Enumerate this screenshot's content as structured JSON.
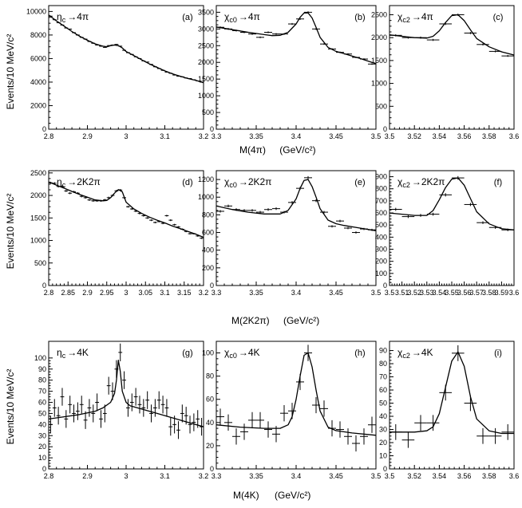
{
  "figure": {
    "ylabel_rows": [
      "Events/10 MeV/c²",
      "Events/10 MeV/c²",
      "Events/10 MeV/c²"
    ],
    "xlabel_rows": [
      {
        "quantity": "M(4π)",
        "unit": "(GeV/c²)"
      },
      {
        "quantity": "M(2K2π)",
        "unit": "(GeV/c²)"
      },
      {
        "quantity": "M(4K)",
        "unit": "(GeV/c²)"
      }
    ]
  },
  "chart_data": [
    {
      "id": "a",
      "type": "scatter",
      "label": "(a)",
      "title": {
        "particle": "η",
        "sub": "c",
        "decay": "4π"
      },
      "xlim": [
        2.8,
        3.2
      ],
      "ylim": [
        0,
        10500
      ],
      "xticks": [
        2.8,
        2.9,
        3,
        3.1,
        3.2
      ],
      "yticks": [
        0,
        2000,
        4000,
        6000,
        8000,
        10000
      ],
      "data": {
        "x": [
          2.805,
          2.815,
          2.825,
          2.835,
          2.845,
          2.855,
          2.865,
          2.875,
          2.885,
          2.895,
          2.905,
          2.915,
          2.925,
          2.935,
          2.945,
          2.955,
          2.965,
          2.975,
          2.985,
          2.995,
          3.005,
          3.015,
          3.025,
          3.035,
          3.045,
          3.055,
          3.065,
          3.075,
          3.085,
          3.095,
          3.105,
          3.115,
          3.125,
          3.135,
          3.145,
          3.155,
          3.165,
          3.175,
          3.185,
          3.195
        ],
        "y": [
          9600,
          9300,
          9050,
          8850,
          8600,
          8500,
          8200,
          8000,
          7800,
          7650,
          7450,
          7300,
          7150,
          7050,
          6950,
          7100,
          7150,
          7200,
          7050,
          6700,
          6500,
          6350,
          6150,
          6000,
          5800,
          5700,
          5500,
          5300,
          5150,
          5000,
          4850,
          4750,
          4600,
          4500,
          4450,
          4350,
          4300,
          4200,
          4100,
          4000
        ],
        "xerr": 0.005
      },
      "fit": {
        "x": [
          2.8,
          2.82,
          2.84,
          2.86,
          2.88,
          2.9,
          2.92,
          2.94,
          2.95,
          2.96,
          2.97,
          2.98,
          2.99,
          3.0,
          3.02,
          3.04,
          3.06,
          3.08,
          3.1,
          3.12,
          3.14,
          3.16,
          3.18,
          3.2
        ],
        "y": [
          9700,
          9200,
          8750,
          8300,
          7900,
          7550,
          7250,
          7050,
          7000,
          7100,
          7150,
          7100,
          6900,
          6600,
          6250,
          5900,
          5550,
          5250,
          4950,
          4700,
          4500,
          4300,
          4150,
          3950
        ]
      }
    },
    {
      "id": "b",
      "type": "scatter",
      "label": "(b)",
      "title": {
        "particle": "χ",
        "sub": "c0",
        "decay": "4π"
      },
      "xlim": [
        3.3,
        3.5
      ],
      "ylim": [
        0,
        3700
      ],
      "xticks": [
        3.3,
        3.35,
        3.4,
        3.45,
        3.5
      ],
      "yticks": [
        0,
        500,
        1000,
        1500,
        2000,
        2500,
        3000,
        3500
      ],
      "data": {
        "x": [
          3.305,
          3.315,
          3.325,
          3.335,
          3.345,
          3.355,
          3.365,
          3.375,
          3.385,
          3.395,
          3.405,
          3.415,
          3.425,
          3.435,
          3.445,
          3.455,
          3.465,
          3.475,
          3.485,
          3.495
        ],
        "y": [
          3050,
          3000,
          2950,
          2900,
          2850,
          2750,
          2900,
          2850,
          2850,
          3150,
          3300,
          3500,
          3000,
          2550,
          2400,
          2300,
          2250,
          2150,
          2100,
          1950
        ],
        "xerr": 0.005
      },
      "fit": {
        "x": [
          3.3,
          3.32,
          3.34,
          3.36,
          3.37,
          3.38,
          3.39,
          3.4,
          3.405,
          3.41,
          3.415,
          3.42,
          3.425,
          3.43,
          3.44,
          3.45,
          3.46,
          3.48,
          3.5
        ],
        "y": [
          3060,
          2980,
          2900,
          2830,
          2800,
          2810,
          2900,
          3150,
          3350,
          3480,
          3480,
          3330,
          3050,
          2750,
          2450,
          2330,
          2260,
          2120,
          1960
        ]
      }
    },
    {
      "id": "c",
      "type": "scatter",
      "label": "(c)",
      "title": {
        "particle": "χ",
        "sub": "c2",
        "decay": "4π"
      },
      "xlim": [
        3.5,
        3.6
      ],
      "ylim": [
        0,
        2700
      ],
      "xticks": [
        3.5,
        3.52,
        3.54,
        3.56,
        3.58,
        3.6
      ],
      "yticks": [
        0,
        500,
        1000,
        1500,
        2000,
        2500
      ],
      "data": {
        "x": [
          3.505,
          3.515,
          3.525,
          3.535,
          3.545,
          3.555,
          3.565,
          3.575,
          3.585,
          3.595
        ],
        "y": [
          2050,
          2000,
          2000,
          1950,
          2300,
          2500,
          2100,
          1850,
          1700,
          1600
        ],
        "xerr": 0.005
      },
      "fit": {
        "x": [
          3.5,
          3.51,
          3.52,
          3.53,
          3.535,
          3.54,
          3.545,
          3.55,
          3.555,
          3.56,
          3.565,
          3.57,
          3.58,
          3.59,
          3.6
        ],
        "y": [
          2060,
          2030,
          2000,
          1990,
          2030,
          2150,
          2330,
          2480,
          2500,
          2370,
          2170,
          1980,
          1800,
          1690,
          1620
        ]
      }
    },
    {
      "id": "d",
      "type": "scatter",
      "label": "(d)",
      "title": {
        "particle": "η",
        "sub": "c",
        "decay": "2K2π"
      },
      "xlim": [
        2.8,
        3.2
      ],
      "ylim": [
        0,
        2550
      ],
      "xticks": [
        2.8,
        2.85,
        2.9,
        2.95,
        3,
        3.05,
        3.1,
        3.15,
        3.2
      ],
      "yticks": [
        0,
        500,
        1000,
        1500,
        2000,
        2500
      ],
      "data": {
        "x": [
          2.805,
          2.815,
          2.825,
          2.835,
          2.845,
          2.855,
          2.865,
          2.875,
          2.885,
          2.895,
          2.905,
          2.915,
          2.925,
          2.935,
          2.945,
          2.955,
          2.965,
          2.975,
          2.985,
          2.995,
          3.005,
          3.015,
          3.025,
          3.035,
          3.045,
          3.055,
          3.065,
          3.075,
          3.085,
          3.095,
          3.105,
          3.115,
          3.125,
          3.135,
          3.145,
          3.155,
          3.165,
          3.175,
          3.185,
          3.195
        ],
        "y": [
          2280,
          2270,
          2200,
          2200,
          2100,
          2050,
          2080,
          2050,
          1980,
          1950,
          1900,
          1880,
          1880,
          1880,
          1900,
          1950,
          2000,
          2100,
          2120,
          1950,
          1750,
          1700,
          1650,
          1600,
          1550,
          1500,
          1450,
          1400,
          1420,
          1380,
          1550,
          1450,
          1350,
          1300,
          1250,
          1200,
          1150,
          1150,
          1100,
          1050
        ],
        "xerr": 0.005
      },
      "fit": {
        "x": [
          2.8,
          2.82,
          2.84,
          2.86,
          2.88,
          2.9,
          2.92,
          2.94,
          2.95,
          2.96,
          2.97,
          2.98,
          2.99,
          3.0,
          3.02,
          3.04,
          3.06,
          3.08,
          3.1,
          3.12,
          3.14,
          3.16,
          3.18,
          3.2
        ],
        "y": [
          2300,
          2230,
          2160,
          2090,
          2020,
          1960,
          1900,
          1880,
          1890,
          1950,
          2050,
          2130,
          2080,
          1850,
          1700,
          1600,
          1520,
          1450,
          1390,
          1320,
          1260,
          1200,
          1140,
          1070
        ]
      }
    },
    {
      "id": "e",
      "type": "scatter",
      "label": "(e)",
      "title": {
        "particle": "χ",
        "sub": "c0",
        "decay": "2K2π"
      },
      "xlim": [
        3.3,
        3.5
      ],
      "ylim": [
        0,
        1300
      ],
      "xticks": [
        3.3,
        3.35,
        3.4,
        3.45,
        3.5
      ],
      "yticks": [
        0,
        200,
        400,
        600,
        800,
        1000,
        1200
      ],
      "data": {
        "x": [
          3.305,
          3.315,
          3.325,
          3.335,
          3.345,
          3.355,
          3.365,
          3.375,
          3.385,
          3.395,
          3.405,
          3.415,
          3.425,
          3.435,
          3.445,
          3.455,
          3.465,
          3.475,
          3.485,
          3.495
        ],
        "y": [
          840,
          900,
          860,
          850,
          850,
          830,
          860,
          870,
          830,
          940,
          1100,
          1220,
          960,
          830,
          670,
          730,
          650,
          600,
          640,
          630
        ],
        "xerr": 0.005
      },
      "fit": {
        "x": [
          3.3,
          3.32,
          3.34,
          3.36,
          3.38,
          3.39,
          3.4,
          3.405,
          3.41,
          3.415,
          3.42,
          3.425,
          3.43,
          3.44,
          3.45,
          3.46,
          3.48,
          3.5
        ],
        "y": [
          900,
          860,
          830,
          810,
          810,
          850,
          980,
          1100,
          1190,
          1200,
          1120,
          1000,
          870,
          740,
          700,
          680,
          650,
          620
        ]
      }
    },
    {
      "id": "f",
      "type": "scatter",
      "label": "(f)",
      "title": {
        "particle": "χ",
        "sub": "c2",
        "decay": "2K2π"
      },
      "xlim": [
        3.5,
        3.6
      ],
      "ylim": [
        0,
        950
      ],
      "xticks": [
        3.5,
        3.51,
        3.52,
        3.53,
        3.54,
        3.55,
        3.56,
        3.57,
        3.58,
        3.59,
        3.6
      ],
      "yticks": [
        0,
        100,
        200,
        300,
        400,
        500,
        600,
        700,
        800,
        900
      ],
      "data": {
        "x": [
          3.505,
          3.515,
          3.525,
          3.535,
          3.545,
          3.555,
          3.565,
          3.575,
          3.585,
          3.595
        ],
        "y": [
          630,
          570,
          580,
          590,
          750,
          890,
          670,
          520,
          480,
          460
        ],
        "xerr": 0.005
      },
      "fit": {
        "x": [
          3.5,
          3.51,
          3.52,
          3.53,
          3.535,
          3.54,
          3.545,
          3.55,
          3.555,
          3.56,
          3.565,
          3.57,
          3.58,
          3.59,
          3.6
        ],
        "y": [
          600,
          590,
          580,
          580,
          620,
          710,
          810,
          880,
          890,
          830,
          720,
          610,
          510,
          470,
          460
        ]
      }
    },
    {
      "id": "g",
      "type": "scatter",
      "label": "(g)",
      "title": {
        "particle": "η",
        "sub": "c",
        "decay": "4K"
      },
      "xlim": [
        2.8,
        3.2
      ],
      "ylim": [
        0,
        115
      ],
      "xticks": [
        2.8,
        2.9,
        3,
        3.1,
        3.2
      ],
      "yticks": [
        0,
        10,
        20,
        30,
        40,
        50,
        60,
        70,
        80,
        90,
        100
      ],
      "data": {
        "x": [
          2.805,
          2.815,
          2.825,
          2.835,
          2.845,
          2.855,
          2.865,
          2.875,
          2.885,
          2.895,
          2.905,
          2.915,
          2.925,
          2.935,
          2.945,
          2.955,
          2.965,
          2.975,
          2.985,
          2.995,
          3.005,
          3.015,
          3.025,
          3.035,
          3.045,
          3.055,
          3.065,
          3.075,
          3.085,
          3.095,
          3.105,
          3.115,
          3.125,
          3.135,
          3.145,
          3.155,
          3.165,
          3.175,
          3.185,
          3.195
        ],
        "y": [
          40,
          55,
          48,
          65,
          45,
          58,
          50,
          52,
          58,
          44,
          55,
          50,
          60,
          45,
          50,
          75,
          70,
          90,
          105,
          80,
          55,
          60,
          65,
          58,
          55,
          62,
          50,
          55,
          62,
          58,
          55,
          38,
          40,
          35,
          50,
          48,
          40,
          42,
          45,
          38
        ],
        "yerr": 8,
        "xerr": 0.005
      },
      "fit": {
        "x": [
          2.8,
          2.84,
          2.88,
          2.92,
          2.94,
          2.96,
          2.97,
          2.975,
          2.98,
          2.985,
          2.99,
          3.0,
          3.01,
          3.04,
          3.08,
          3.12,
          3.16,
          3.2
        ],
        "y": [
          45,
          47,
          49,
          52,
          55,
          60,
          68,
          80,
          98,
          88,
          70,
          60,
          57,
          54,
          50,
          46,
          42,
          38
        ]
      }
    },
    {
      "id": "h",
      "type": "scatter",
      "label": "(h)",
      "title": {
        "particle": "χ",
        "sub": "c0",
        "decay": "4K"
      },
      "xlim": [
        3.3,
        3.5
      ],
      "ylim": [
        0,
        110
      ],
      "xticks": [
        3.3,
        3.35,
        3.4,
        3.45,
        3.5
      ],
      "yticks": [
        0,
        20,
        40,
        60,
        80,
        100
      ],
      "data": {
        "x": [
          3.305,
          3.315,
          3.325,
          3.335,
          3.345,
          3.355,
          3.365,
          3.375,
          3.385,
          3.395,
          3.405,
          3.415,
          3.425,
          3.435,
          3.445,
          3.455,
          3.465,
          3.475,
          3.485,
          3.495
        ],
        "y": [
          45,
          40,
          28,
          32,
          42,
          42,
          34,
          30,
          48,
          50,
          75,
          100,
          55,
          52,
          35,
          34,
          28,
          22,
          28,
          38
        ],
        "yerr": 7,
        "xerr": 0.005
      },
      "fit": {
        "x": [
          3.3,
          3.33,
          3.36,
          3.38,
          3.39,
          3.395,
          3.4,
          3.405,
          3.41,
          3.415,
          3.42,
          3.425,
          3.43,
          3.44,
          3.45,
          3.47,
          3.5
        ],
        "y": [
          38,
          36,
          35,
          35,
          38,
          45,
          60,
          80,
          98,
          100,
          88,
          68,
          50,
          36,
          33,
          31,
          29
        ]
      }
    },
    {
      "id": "i",
      "type": "scatter",
      "label": "(i)",
      "title": {
        "particle": "χ",
        "sub": "c2",
        "decay": "4K"
      },
      "xlim": [
        3.5,
        3.6
      ],
      "ylim": [
        0,
        97
      ],
      "xticks": [
        3.5,
        3.52,
        3.54,
        3.56,
        3.58,
        3.6
      ],
      "yticks": [
        0,
        10,
        20,
        30,
        40,
        50,
        60,
        70,
        80,
        90
      ],
      "data": {
        "x": [
          3.505,
          3.515,
          3.525,
          3.535,
          3.545,
          3.555,
          3.565,
          3.575,
          3.585,
          3.595
        ],
        "y": [
          28,
          22,
          35,
          35,
          58,
          88,
          50,
          25,
          25,
          28
        ],
        "yerr": 6,
        "xerr": 0.005
      },
      "fit": {
        "x": [
          3.5,
          3.51,
          3.52,
          3.53,
          3.535,
          3.54,
          3.545,
          3.55,
          3.555,
          3.56,
          3.565,
          3.57,
          3.58,
          3.59,
          3.6
        ],
        "y": [
          28,
          28,
          28,
          29,
          32,
          42,
          62,
          82,
          89,
          78,
          55,
          38,
          29,
          27,
          27
        ]
      }
    }
  ]
}
